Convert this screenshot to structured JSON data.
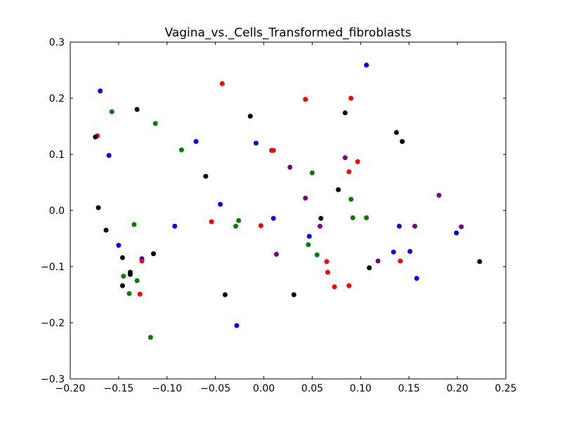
{
  "chart_data": {
    "type": "scatter",
    "title": "Vagina_vs._Cells_Transformed_fibroblasts",
    "xlabel": "",
    "ylabel": "",
    "xlim": [
      -0.2,
      0.25
    ],
    "ylim": [
      -0.3,
      0.3
    ],
    "xticks": [
      -0.2,
      -0.15,
      -0.1,
      -0.05,
      0.0,
      0.05,
      0.1,
      0.15,
      0.2,
      0.25
    ],
    "yticks": [
      -0.3,
      -0.2,
      -0.1,
      0.0,
      0.1,
      0.2,
      0.3
    ],
    "xtick_labels": [
      "−0.20",
      "−0.15",
      "−0.10",
      "−0.05",
      "0.00",
      "0.05",
      "0.10",
      "0.15",
      "0.20",
      "0.25"
    ],
    "ytick_labels": [
      "−0.3",
      "−0.2",
      "−0.1",
      "0.0",
      "0.1",
      "0.2",
      "0.3"
    ],
    "grid": false,
    "legend": "none",
    "series": [
      {
        "color": "#0000ff",
        "points": [
          [
            -0.169,
            0.213
          ],
          [
            -0.16,
            0.098
          ],
          [
            -0.15,
            -0.062
          ],
          [
            -0.126,
            -0.086
          ],
          [
            -0.092,
            -0.028
          ],
          [
            -0.07,
            0.123
          ],
          [
            -0.045,
            0.011
          ],
          [
            -0.028,
            -0.205
          ],
          [
            -0.008,
            0.12
          ],
          [
            0.01,
            -0.014
          ],
          [
            0.047,
            -0.046
          ],
          [
            0.106,
            0.259
          ],
          [
            0.134,
            -0.074
          ],
          [
            0.14,
            -0.028
          ],
          [
            0.151,
            -0.073
          ],
          [
            0.158,
            -0.121
          ],
          [
            0.199,
            -0.04
          ]
        ]
      },
      {
        "color": "#ff0000",
        "points": [
          [
            -0.172,
            0.133
          ],
          [
            -0.128,
            -0.149
          ],
          [
            -0.126,
            -0.09
          ],
          [
            -0.054,
            -0.02
          ],
          [
            -0.043,
            0.226
          ],
          [
            -0.003,
            -0.027
          ],
          [
            0.008,
            0.107
          ],
          [
            0.01,
            0.107
          ],
          [
            0.043,
            0.198
          ],
          [
            0.065,
            -0.091
          ],
          [
            0.066,
            -0.11
          ],
          [
            0.073,
            -0.136
          ],
          [
            0.088,
            0.069
          ],
          [
            0.088,
            -0.134
          ],
          [
            0.09,
            0.2
          ],
          [
            0.097,
            0.087
          ],
          [
            0.141,
            -0.09
          ]
        ]
      },
      {
        "color": "#000000",
        "points": [
          [
            -0.174,
            0.131
          ],
          [
            -0.171,
            0.005
          ],
          [
            -0.163,
            -0.035
          ],
          [
            -0.146,
            -0.084
          ],
          [
            -0.146,
            -0.134
          ],
          [
            -0.138,
            -0.11
          ],
          [
            -0.138,
            -0.114
          ],
          [
            -0.131,
            0.18
          ],
          [
            -0.114,
            -0.077
          ],
          [
            -0.06,
            0.061
          ],
          [
            -0.04,
            -0.15
          ],
          [
            -0.014,
            0.168
          ],
          [
            0.031,
            -0.15
          ],
          [
            0.059,
            -0.014
          ],
          [
            0.077,
            0.037
          ],
          [
            0.084,
            0.174
          ],
          [
            0.109,
            -0.102
          ],
          [
            0.137,
            0.139
          ],
          [
            0.143,
            0.123
          ],
          [
            0.223,
            -0.091
          ]
        ]
      },
      {
        "color": "#008000",
        "points": [
          [
            -0.157,
            0.176
          ],
          [
            -0.145,
            -0.117
          ],
          [
            -0.139,
            -0.148
          ],
          [
            -0.134,
            -0.025
          ],
          [
            -0.131,
            -0.125
          ],
          [
            -0.117,
            -0.226
          ],
          [
            -0.112,
            0.155
          ],
          [
            -0.085,
            0.108
          ],
          [
            -0.029,
            -0.028
          ],
          [
            -0.026,
            -0.018
          ],
          [
            0.046,
            -0.061
          ],
          [
            0.05,
            0.067
          ],
          [
            0.055,
            -0.079
          ],
          [
            0.09,
            0.02
          ],
          [
            0.092,
            -0.013
          ],
          [
            0.106,
            -0.013
          ]
        ]
      },
      {
        "color": "#800080",
        "points": [
          [
            0.013,
            -0.078
          ],
          [
            0.027,
            0.077
          ],
          [
            0.043,
            0.022
          ],
          [
            0.058,
            -0.028
          ],
          [
            0.084,
            0.094
          ],
          [
            0.118,
            -0.09
          ],
          [
            0.156,
            -0.028
          ],
          [
            0.181,
            0.027
          ],
          [
            0.204,
            -0.029
          ]
        ]
      }
    ]
  }
}
